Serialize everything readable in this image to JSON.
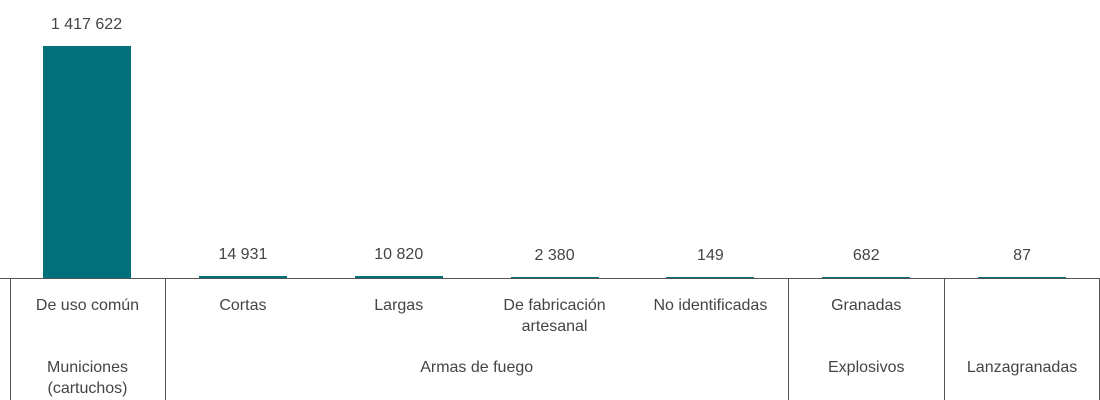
{
  "chart_data": {
    "type": "bar",
    "categories": [
      "De uso común",
      "Cortas",
      "Largas",
      "De fabricación artesanal",
      "No identificadas",
      "Granadas",
      null
    ],
    "values": [
      1417622,
      14931,
      10820,
      2380,
      149,
      682,
      87
    ],
    "value_labels": [
      "1 417 622",
      "14 931",
      "10 820",
      "2 380",
      "149",
      "682",
      "87"
    ],
    "color": "#00707a",
    "groups": [
      {
        "label": "Municiones (cartuchos)",
        "span": 1
      },
      {
        "label": "Armas de fuego",
        "span": 4
      },
      {
        "label": "Explosivos",
        "span": 1
      },
      {
        "label": "Lanzagranadas",
        "span": 1
      }
    ]
  }
}
